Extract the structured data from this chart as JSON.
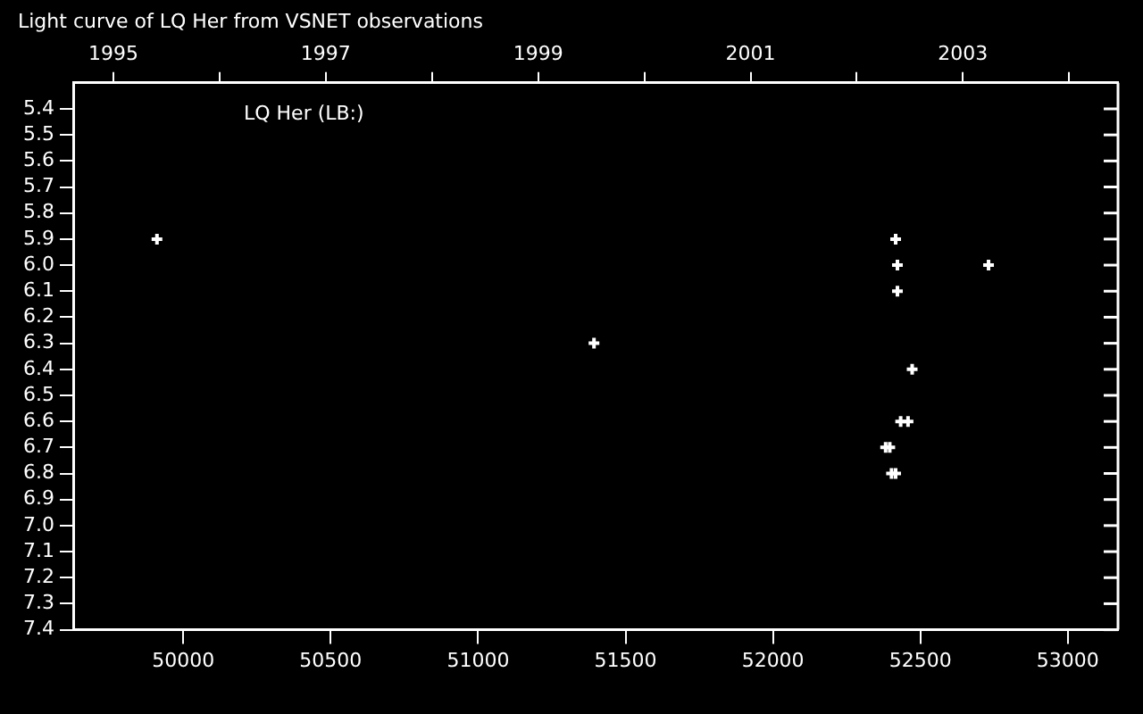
{
  "chart_data": {
    "type": "scatter",
    "title": "Light curve of LQ Her from VSNET observations",
    "annotations": [
      "LQ Her (LB:)"
    ],
    "series": [
      {
        "color": "#ffffff",
        "x": [
          49911,
          51393,
          52416,
          52422,
          52422,
          52731,
          52472,
          52433,
          52458,
          52382,
          52396,
          52402,
          52416
        ],
        "values": [
          5.9,
          6.3,
          5.9,
          6.0,
          6.1,
          6.0,
          6.4,
          6.6,
          6.6,
          6.7,
          6.7,
          6.8,
          6.8
        ]
      }
    ],
    "xlim": [
      49630,
      53170
    ],
    "xticks": [
      50000,
      50500,
      51000,
      51500,
      52000,
      52500,
      53000
    ],
    "x2lim": [
      1994.63,
      2004.46
    ],
    "x2ticks": [
      1995,
      {
        "value": 1996,
        "label": null
      },
      1997,
      {
        "value": 1998,
        "label": null
      },
      1999,
      {
        "value": 2000,
        "label": null
      },
      2001,
      {
        "value": 2002,
        "label": null
      },
      2003,
      {
        "value": 2004,
        "label": null
      }
    ],
    "ylim": [
      7.4,
      5.3
    ],
    "yticks": [
      {
        "value": 5.4,
        "label": "5.4"
      },
      {
        "value": 5.5,
        "label": "5.5"
      },
      {
        "value": 5.6,
        "label": "5.6"
      },
      {
        "value": 5.7,
        "label": "5.7"
      },
      {
        "value": 5.8,
        "label": "5.8"
      },
      {
        "value": 5.9,
        "label": "5.9"
      },
      {
        "value": 6.0,
        "label": "6.0"
      },
      {
        "value": 6.1,
        "label": "6.1"
      },
      {
        "value": 6.2,
        "label": "6.2"
      },
      {
        "value": 6.3,
        "label": "6.3"
      },
      {
        "value": 6.4,
        "label": "6.4"
      },
      {
        "value": 6.5,
        "label": "6.5"
      },
      {
        "value": 6.6,
        "label": "6.6"
      },
      {
        "value": 6.7,
        "label": "6.7"
      },
      {
        "value": 6.8,
        "label": "6.8"
      },
      {
        "value": 6.9,
        "label": "6.9"
      },
      {
        "value": 7.0,
        "label": "7.0"
      },
      {
        "value": 7.1,
        "label": "7.1"
      },
      {
        "value": 7.2,
        "label": "7.2"
      },
      {
        "value": 7.3,
        "label": "7.3"
      },
      {
        "value": 7.4,
        "label": "7.4"
      }
    ],
    "marker": "cross",
    "grid": false,
    "legend": false
  }
}
